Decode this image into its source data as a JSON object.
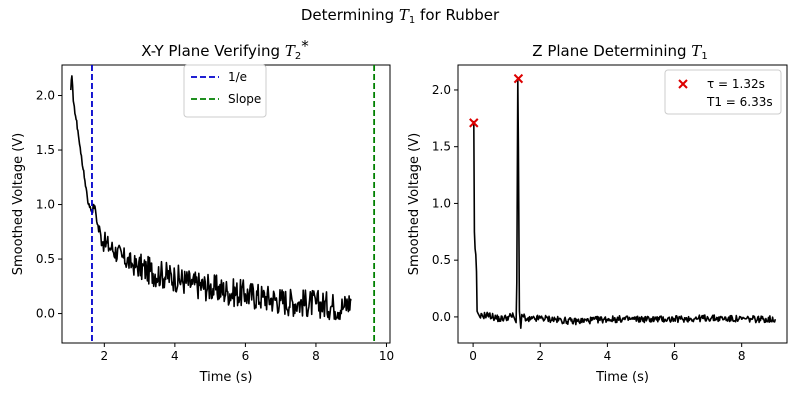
{
  "figure": {
    "suptitle": "Determining T1 for Rubber"
  },
  "chart_data": [
    {
      "type": "line",
      "title": "X-Y Plane Verifying T2*",
      "xlabel": "Time (s)",
      "ylabel": "Smoothed Voltage (V)",
      "xlim": [
        0.8,
        10.1
      ],
      "ylim": [
        -0.27,
        2.28
      ],
      "xticks": [
        2,
        4,
        6,
        8,
        10
      ],
      "yticks": [
        0.0,
        0.5,
        1.0,
        1.5,
        2.0
      ],
      "grid": false,
      "legend_position": "top-center",
      "legend": [
        {
          "label": "1/e",
          "color": "#0000cc",
          "style": "dashed"
        },
        {
          "label": "Slope",
          "color": "#008000",
          "style": "dashed"
        }
      ],
      "vlines": [
        {
          "x": 1.65,
          "color": "#0000cc"
        },
        {
          "x": 9.65,
          "color": "#008000"
        }
      ],
      "series": [
        {
          "color": "#000000",
          "x": [
            1.05,
            1.08,
            1.12,
            1.15,
            1.2,
            1.25,
            1.3,
            1.35,
            1.4,
            1.45,
            1.5,
            1.55,
            1.6,
            1.65,
            1.7,
            1.75,
            1.8,
            1.9,
            2.0,
            2.2,
            2.5,
            2.8,
            3.2,
            3.6,
            4.0,
            4.5,
            5.0,
            5.5,
            6.0,
            6.5,
            7.0,
            7.5,
            8.0,
            8.5,
            8.8,
            9.0
          ],
          "y": [
            2.05,
            2.18,
            1.95,
            1.9,
            1.78,
            1.68,
            1.55,
            1.45,
            1.32,
            1.22,
            1.12,
            1.0,
            0.98,
            0.93,
            1.0,
            0.95,
            0.82,
            0.72,
            0.65,
            0.6,
            0.52,
            0.45,
            0.4,
            0.36,
            0.33,
            0.27,
            0.24,
            0.2,
            0.18,
            0.15,
            0.12,
            0.1,
            0.09,
            0.07,
            0.06,
            0.12
          ]
        }
      ]
    },
    {
      "type": "line",
      "title": "Z Plane Determining T1",
      "xlabel": "Time (s)",
      "ylabel": "Smoothed Voltage (V)",
      "xlim": [
        -0.45,
        9.35
      ],
      "ylim": [
        -0.23,
        2.22
      ],
      "xticks": [
        0,
        2,
        4,
        6,
        8
      ],
      "yticks": [
        0.0,
        0.5,
        1.0,
        1.5,
        2.0
      ],
      "grid": false,
      "legend_position": "top-right",
      "legend": [
        {
          "marker": "x",
          "color": "#dd0000",
          "line1": "τ = 1.32s",
          "line2": "T1 = 6.33s"
        }
      ],
      "markers": [
        {
          "x": 0.02,
          "y": 1.71
        },
        {
          "x": 1.35,
          "y": 2.1
        }
      ],
      "series": [
        {
          "color": "#000000",
          "x": [
            0.0,
            0.02,
            0.04,
            0.06,
            0.08,
            0.1,
            0.12,
            0.15,
            0.2,
            0.4,
            0.8,
            1.2,
            1.28,
            1.3,
            1.33,
            1.35,
            1.38,
            1.42,
            1.45,
            1.5,
            1.6,
            2.0,
            3.0,
            4.0,
            5.0,
            6.0,
            7.0,
            8.0,
            9.0
          ],
          "y": [
            1.7,
            1.72,
            0.75,
            0.6,
            0.55,
            0.4,
            0.05,
            0.03,
            0.0,
            0.02,
            -0.02,
            0.01,
            -0.05,
            0.3,
            2.1,
            1.5,
            0.05,
            -0.1,
            0.02,
            0.0,
            -0.03,
            -0.01,
            -0.04,
            -0.02,
            -0.02,
            -0.02,
            -0.01,
            -0.02,
            -0.02
          ]
        }
      ]
    }
  ]
}
